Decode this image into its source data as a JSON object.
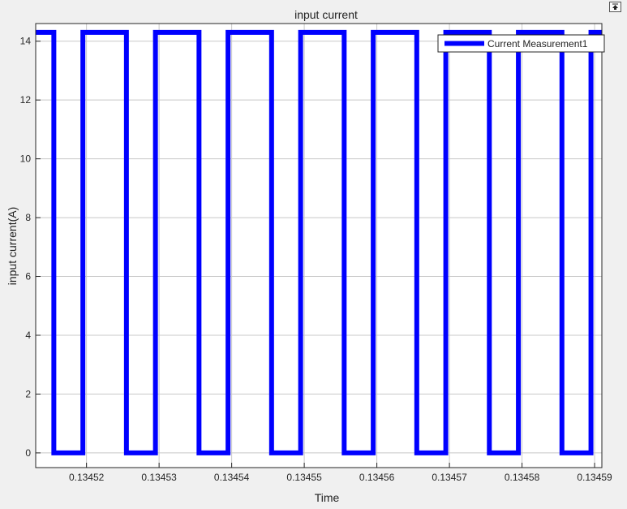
{
  "window": {
    "undock_icon": "undock-arrow-icon"
  },
  "chart_data": {
    "type": "line",
    "title": "input current",
    "xlabel": "Time",
    "ylabel": "input current(A)",
    "xlim": [
      0.134513,
      0.134591
    ],
    "ylim": [
      -0.5,
      14.6
    ],
    "x_ticks": [
      0.13452,
      0.13453,
      0.13454,
      0.13455,
      0.13456,
      0.13457,
      0.13458,
      0.13459
    ],
    "x_tick_labels": [
      "0.13452",
      "0.13453",
      "0.13454",
      "0.13455",
      "0.13456",
      "0.13457",
      "0.13458",
      "0.13459"
    ],
    "y_ticks": [
      0,
      2,
      4,
      6,
      8,
      10,
      12,
      14
    ],
    "y_tick_labels": [
      "0",
      "2",
      "4",
      "6",
      "8",
      "10",
      "12",
      "14"
    ],
    "grid": true,
    "legend": {
      "position": "top-right",
      "entries": [
        "Current Measurement1"
      ]
    },
    "series": [
      {
        "name": "Current Measurement1",
        "color": "#0000ff",
        "x": [
          0.134513,
          0.1345155,
          0.1345155,
          0.1345195,
          0.1345195,
          0.1345255,
          0.1345255,
          0.1345295,
          0.1345295,
          0.1345355,
          0.1345355,
          0.1345395,
          0.1345395,
          0.1345455,
          0.1345455,
          0.1345495,
          0.1345495,
          0.1345555,
          0.1345555,
          0.1345595,
          0.1345595,
          0.1345655,
          0.1345655,
          0.1345695,
          0.1345695,
          0.1345755,
          0.1345755,
          0.1345795,
          0.1345795,
          0.1345855,
          0.1345855,
          0.1345895,
          0.1345895,
          0.134591
        ],
        "y": [
          14.3,
          14.3,
          0,
          0,
          14.3,
          14.3,
          0,
          0,
          14.3,
          14.3,
          0,
          0,
          14.3,
          14.3,
          0,
          0,
          14.3,
          14.3,
          0,
          0,
          14.3,
          14.3,
          0,
          0,
          14.3,
          14.3,
          0,
          0,
          14.3,
          14.3,
          0,
          0,
          14.3,
          14.3
        ]
      }
    ]
  }
}
